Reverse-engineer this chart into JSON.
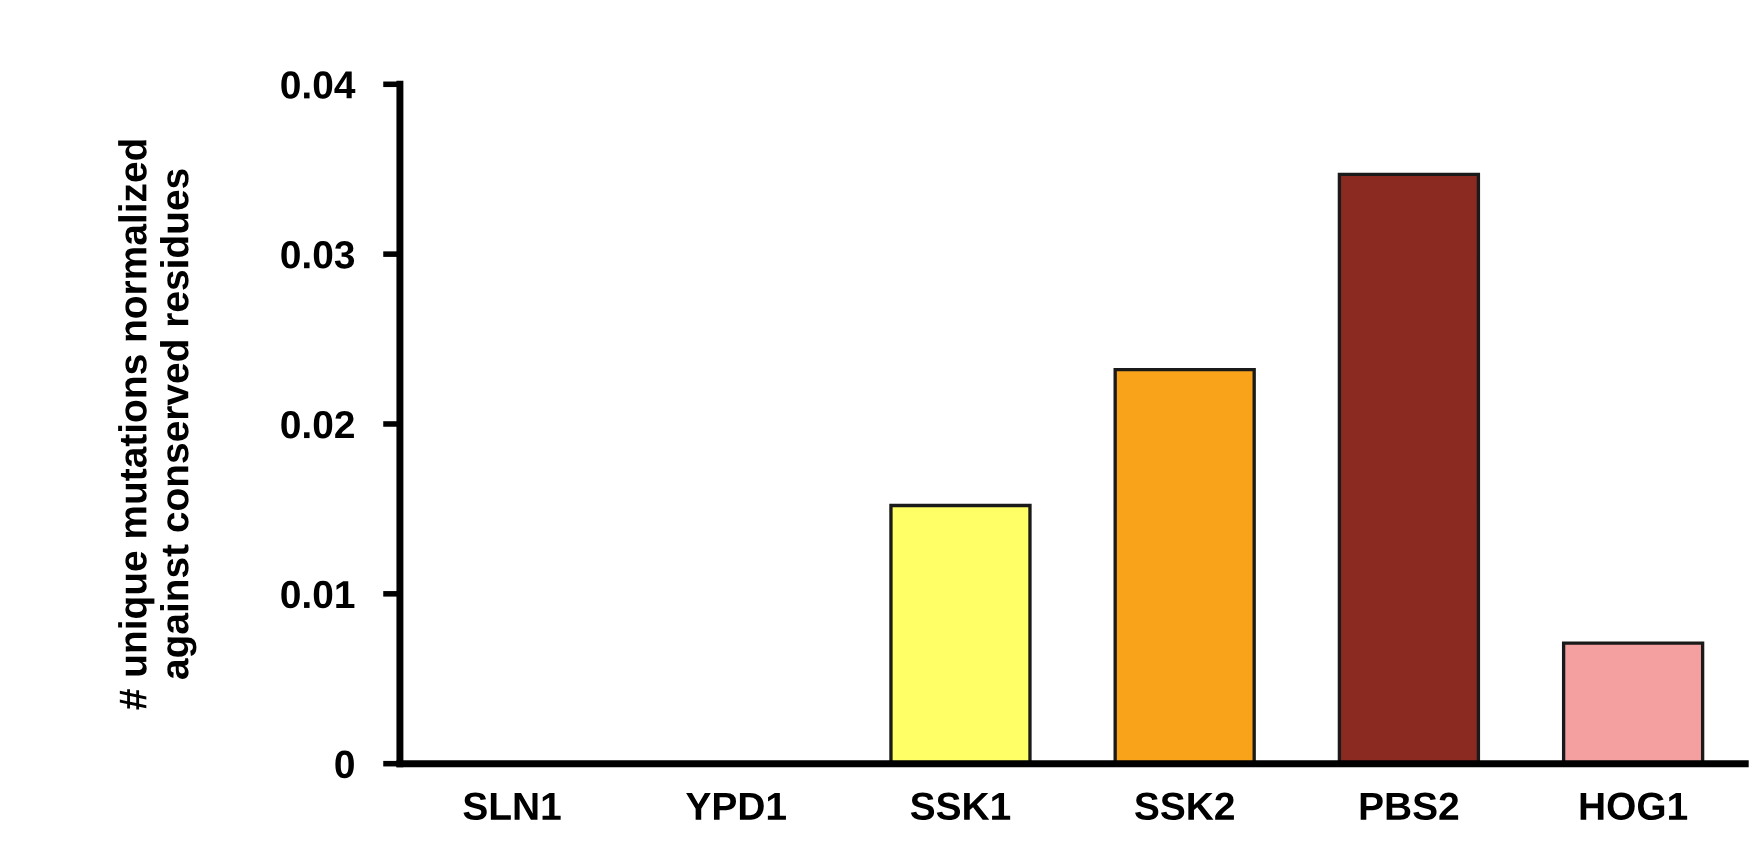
{
  "chart_data": {
    "type": "bar",
    "ylabel": "# unique mutations normalized\nagainst conserved residues",
    "categories": [
      "SLN1",
      "YPD1",
      "SSK1",
      "SSK2",
      "PBS2",
      "HOG1"
    ],
    "values": [
      0,
      0,
      0.0152,
      0.0232,
      0.0347,
      0.0071
    ],
    "colors": [
      "#1a1a1a",
      "#1a1a1a",
      "#ffff66",
      "#f9a31b",
      "#8b2a20",
      "#f4a0a0"
    ],
    "ylim": [
      0,
      0.04
    ],
    "yticks": [
      0,
      0.01,
      0.02,
      0.03,
      0.04
    ],
    "grid": false
  }
}
